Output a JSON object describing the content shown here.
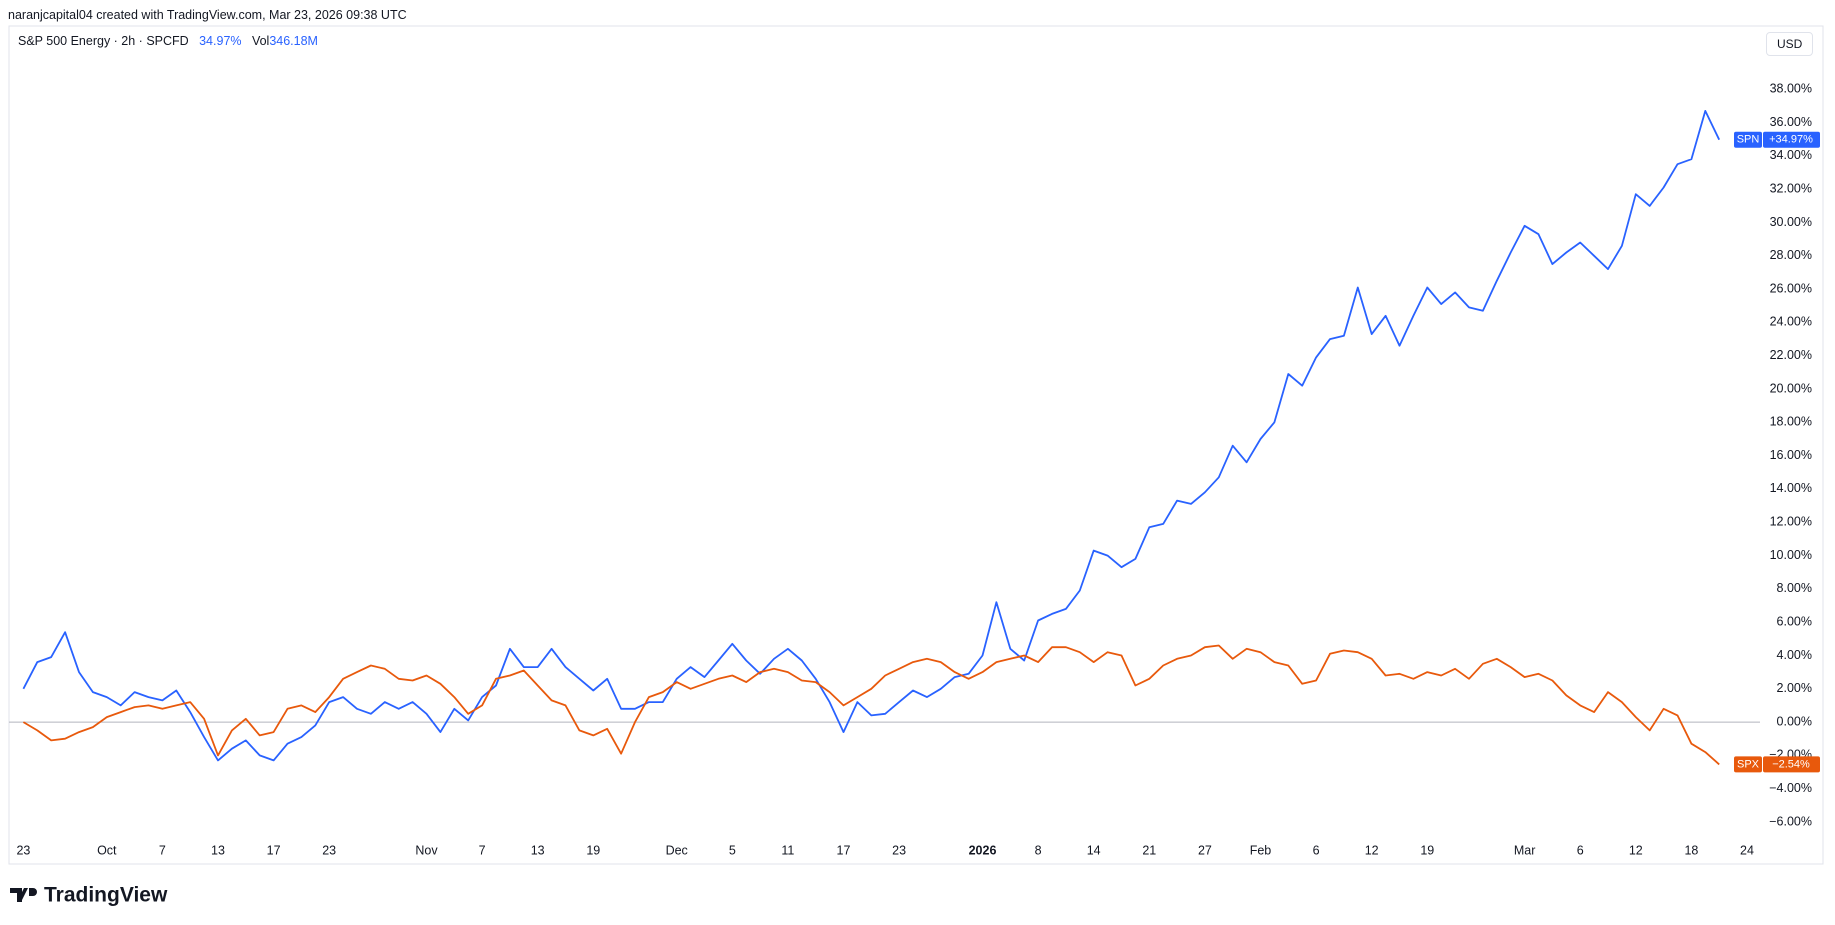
{
  "attribution": "naranjcapital04 created with TradingView.com, Mar 23, 2026 09:38 UTC",
  "logo": "TradingView",
  "currency": "USD",
  "chart_data": {
    "type": "line",
    "header": {
      "symbol": "S&P 500 Energy · 2h · SPCFD",
      "change": "34.97%",
      "vol_label": "Vol",
      "vol": "346.18M"
    },
    "categories": [
      "23",
      null,
      null,
      null,
      null,
      null,
      "Oct",
      null,
      null,
      null,
      "7",
      null,
      null,
      null,
      "13",
      null,
      null,
      null,
      "17",
      null,
      null,
      null,
      "23",
      null,
      null,
      null,
      null,
      null,
      null,
      "Nov",
      null,
      null,
      null,
      "7",
      null,
      null,
      null,
      "13",
      null,
      null,
      null,
      "19",
      null,
      null,
      null,
      null,
      null,
      "Dec",
      null,
      null,
      null,
      "5",
      null,
      null,
      null,
      "11",
      null,
      null,
      null,
      "17",
      null,
      null,
      null,
      "23",
      null,
      null,
      null,
      null,
      null,
      "2026",
      null,
      null,
      null,
      "8",
      null,
      null,
      null,
      "14",
      null,
      null,
      null,
      "21",
      null,
      null,
      null,
      "27",
      null,
      null,
      null,
      "Feb",
      null,
      null,
      null,
      "6",
      null,
      null,
      null,
      "12",
      null,
      null,
      null,
      "19",
      null,
      null,
      null,
      null,
      null,
      null,
      "Mar",
      null,
      null,
      null,
      "6",
      null,
      null,
      null,
      "12",
      null,
      null,
      null,
      "18",
      null,
      null,
      null,
      "24"
    ],
    "series": [
      {
        "name": "SPN",
        "color": "#2962ff",
        "last_label": "+34.97%",
        "values": [
          2.0,
          3.6,
          3.9,
          5.4,
          3.0,
          1.8,
          1.5,
          1.0,
          1.8,
          1.5,
          1.3,
          1.9,
          0.6,
          -0.9,
          -2.3,
          -1.6,
          -1.1,
          -2.0,
          -2.3,
          -1.3,
          -0.9,
          -0.2,
          1.2,
          1.5,
          0.8,
          0.5,
          1.2,
          0.8,
          1.2,
          0.5,
          -0.6,
          0.8,
          0.1,
          1.5,
          2.2,
          4.4,
          3.3,
          3.3,
          4.4,
          3.3,
          2.6,
          1.9,
          2.6,
          0.8,
          0.8,
          1.2,
          1.2,
          2.6,
          3.3,
          2.7,
          3.7,
          4.7,
          3.7,
          2.9,
          3.8,
          4.4,
          3.7,
          2.6,
          1.2,
          -0.6,
          1.2,
          0.4,
          0.5,
          1.2,
          1.9,
          1.5,
          2.0,
          2.7,
          2.9,
          4.0,
          7.2,
          4.4,
          3.7,
          6.1,
          6.5,
          6.8,
          7.9,
          10.3,
          10.0,
          9.3,
          9.8,
          11.7,
          11.9,
          13.3,
          13.1,
          13.8,
          14.7,
          16.6,
          15.6,
          17.0,
          18.0,
          20.9,
          20.2,
          21.9,
          23.0,
          23.2,
          26.1,
          23.3,
          24.4,
          22.6,
          24.4,
          26.1,
          25.1,
          25.8,
          24.9,
          24.7,
          26.5,
          28.2,
          29.8,
          29.3,
          27.5,
          28.2,
          28.8,
          28.0,
          27.2,
          28.6,
          31.7,
          31.0,
          32.1,
          33.5,
          33.8,
          36.7,
          34.97,
          null,
          null
        ]
      },
      {
        "name": "SPX",
        "color": "#e8590c",
        "last_label": "−2.54%",
        "values": [
          0.0,
          -0.5,
          -1.1,
          -1.0,
          -0.6,
          -0.3,
          0.3,
          0.6,
          0.9,
          1.0,
          0.8,
          1.0,
          1.2,
          0.2,
          -2.0,
          -0.5,
          0.2,
          -0.8,
          -0.6,
          0.8,
          1.0,
          0.6,
          1.5,
          2.6,
          3.0,
          3.4,
          3.2,
          2.6,
          2.5,
          2.8,
          2.3,
          1.5,
          0.5,
          1.0,
          2.6,
          2.8,
          3.1,
          2.2,
          1.3,
          1.0,
          -0.5,
          -0.8,
          -0.4,
          -1.9,
          0.0,
          1.5,
          1.8,
          2.4,
          2.0,
          2.3,
          2.6,
          2.8,
          2.4,
          3.0,
          3.2,
          3.0,
          2.5,
          2.4,
          1.8,
          1.0,
          1.5,
          2.0,
          2.8,
          3.2,
          3.6,
          3.8,
          3.6,
          3.0,
          2.6,
          3.0,
          3.6,
          3.8,
          4.0,
          3.6,
          4.5,
          4.5,
          4.2,
          3.6,
          4.2,
          4.0,
          2.2,
          2.6,
          3.4,
          3.8,
          4.0,
          4.5,
          4.6,
          3.8,
          4.4,
          4.2,
          3.6,
          3.4,
          2.3,
          2.5,
          4.1,
          4.3,
          4.2,
          3.8,
          2.8,
          2.9,
          2.6,
          3.0,
          2.8,
          3.2,
          2.6,
          3.5,
          3.8,
          3.3,
          2.7,
          2.9,
          2.5,
          1.6,
          1.0,
          0.6,
          1.8,
          1.2,
          0.3,
          -0.5,
          0.8,
          0.4,
          -1.3,
          -1.8,
          -2.54,
          null,
          null
        ]
      }
    ],
    "ylim": [
      -6.9,
      41.8
    ],
    "yticks": [
      {
        "value": -6,
        "label": "−6.00%"
      },
      {
        "value": -4,
        "label": "−4.00%"
      },
      {
        "value": -2,
        "label": "−2.00%"
      },
      {
        "value": 0,
        "label": "0.00%"
      },
      {
        "value": 2,
        "label": "2.00%"
      },
      {
        "value": 4,
        "label": "4.00%"
      },
      {
        "value": 6,
        "label": "6.00%"
      },
      {
        "value": 8,
        "label": "8.00%"
      },
      {
        "value": 10,
        "label": "10.00%"
      },
      {
        "value": 12,
        "label": "12.00%"
      },
      {
        "value": 14,
        "label": "14.00%"
      },
      {
        "value": 16,
        "label": "16.00%"
      },
      {
        "value": 18,
        "label": "18.00%"
      },
      {
        "value": 20,
        "label": "20.00%"
      },
      {
        "value": 22,
        "label": "22.00%"
      },
      {
        "value": 24,
        "label": "24.00%"
      },
      {
        "value": 26,
        "label": "26.00%"
      },
      {
        "value": 28,
        "label": "28.00%"
      },
      {
        "value": 30,
        "label": "30.00%"
      },
      {
        "value": 32,
        "label": "32.00%"
      },
      {
        "value": 34,
        "label": "34.00%"
      },
      {
        "value": 36,
        "label": "36.00%"
      },
      {
        "value": 38,
        "label": "38.00%"
      }
    ],
    "grid": false
  }
}
